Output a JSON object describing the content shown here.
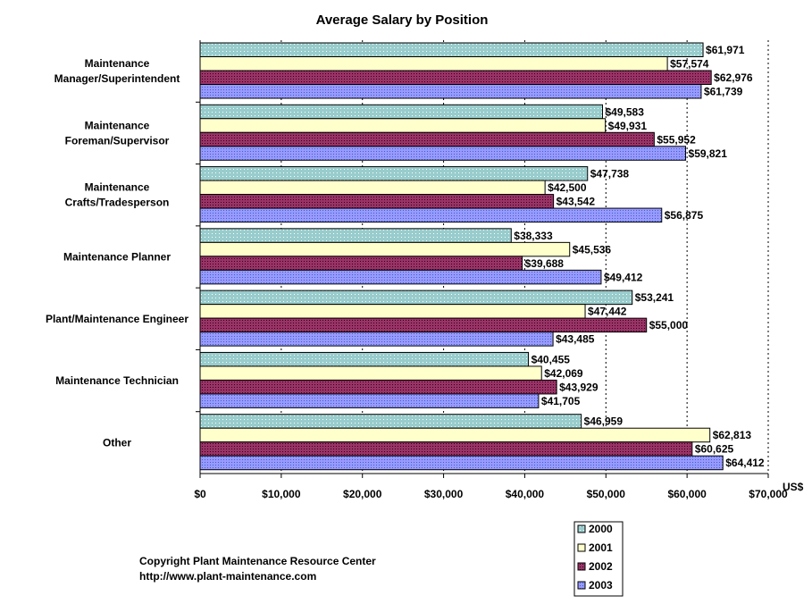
{
  "chart_data": {
    "type": "bar",
    "orientation": "horizontal",
    "title": "Average Salary by Position",
    "xlabel": "US$",
    "ylabel": "",
    "xlim": [
      0,
      70000
    ],
    "x_ticks": [
      "$0",
      "$10,000",
      "$20,000",
      "$30,000",
      "$40,000",
      "$50,000",
      "$60,000",
      "$70,000"
    ],
    "grid": "vertical dotted at $50,000, $60,000, $70,000",
    "legend_position": "bottom-center",
    "categories": [
      [
        "Maintenance",
        "Manager/Superintendent"
      ],
      [
        "Maintenance",
        "Foreman/Supervisor"
      ],
      [
        "Maintenance",
        "Crafts/Tradesperson"
      ],
      [
        "Maintenance Planner"
      ],
      [
        "Plant/Maintenance Engineer"
      ],
      [
        "Maintenance Technician"
      ],
      [
        "Other"
      ]
    ],
    "series": [
      {
        "name": "2000",
        "color": "#99cccc",
        "values": [
          61971,
          49583,
          47738,
          38333,
          53241,
          40455,
          46959
        ]
      },
      {
        "name": "2001",
        "color": "#ffffcc",
        "values": [
          57574,
          49931,
          42500,
          45536,
          47442,
          42069,
          62813
        ]
      },
      {
        "name": "2002",
        "color": "#993366",
        "values": [
          62976,
          55952,
          43542,
          39688,
          55000,
          43929,
          60625
        ]
      },
      {
        "name": "2003",
        "color": "#9999ff",
        "values": [
          61739,
          59821,
          56875,
          49412,
          43485,
          41705,
          64412
        ]
      }
    ]
  },
  "footer": {
    "copyright": "Copyright Plant Maintenance Resource Center",
    "url": "http://www.plant-maintenance.com"
  }
}
